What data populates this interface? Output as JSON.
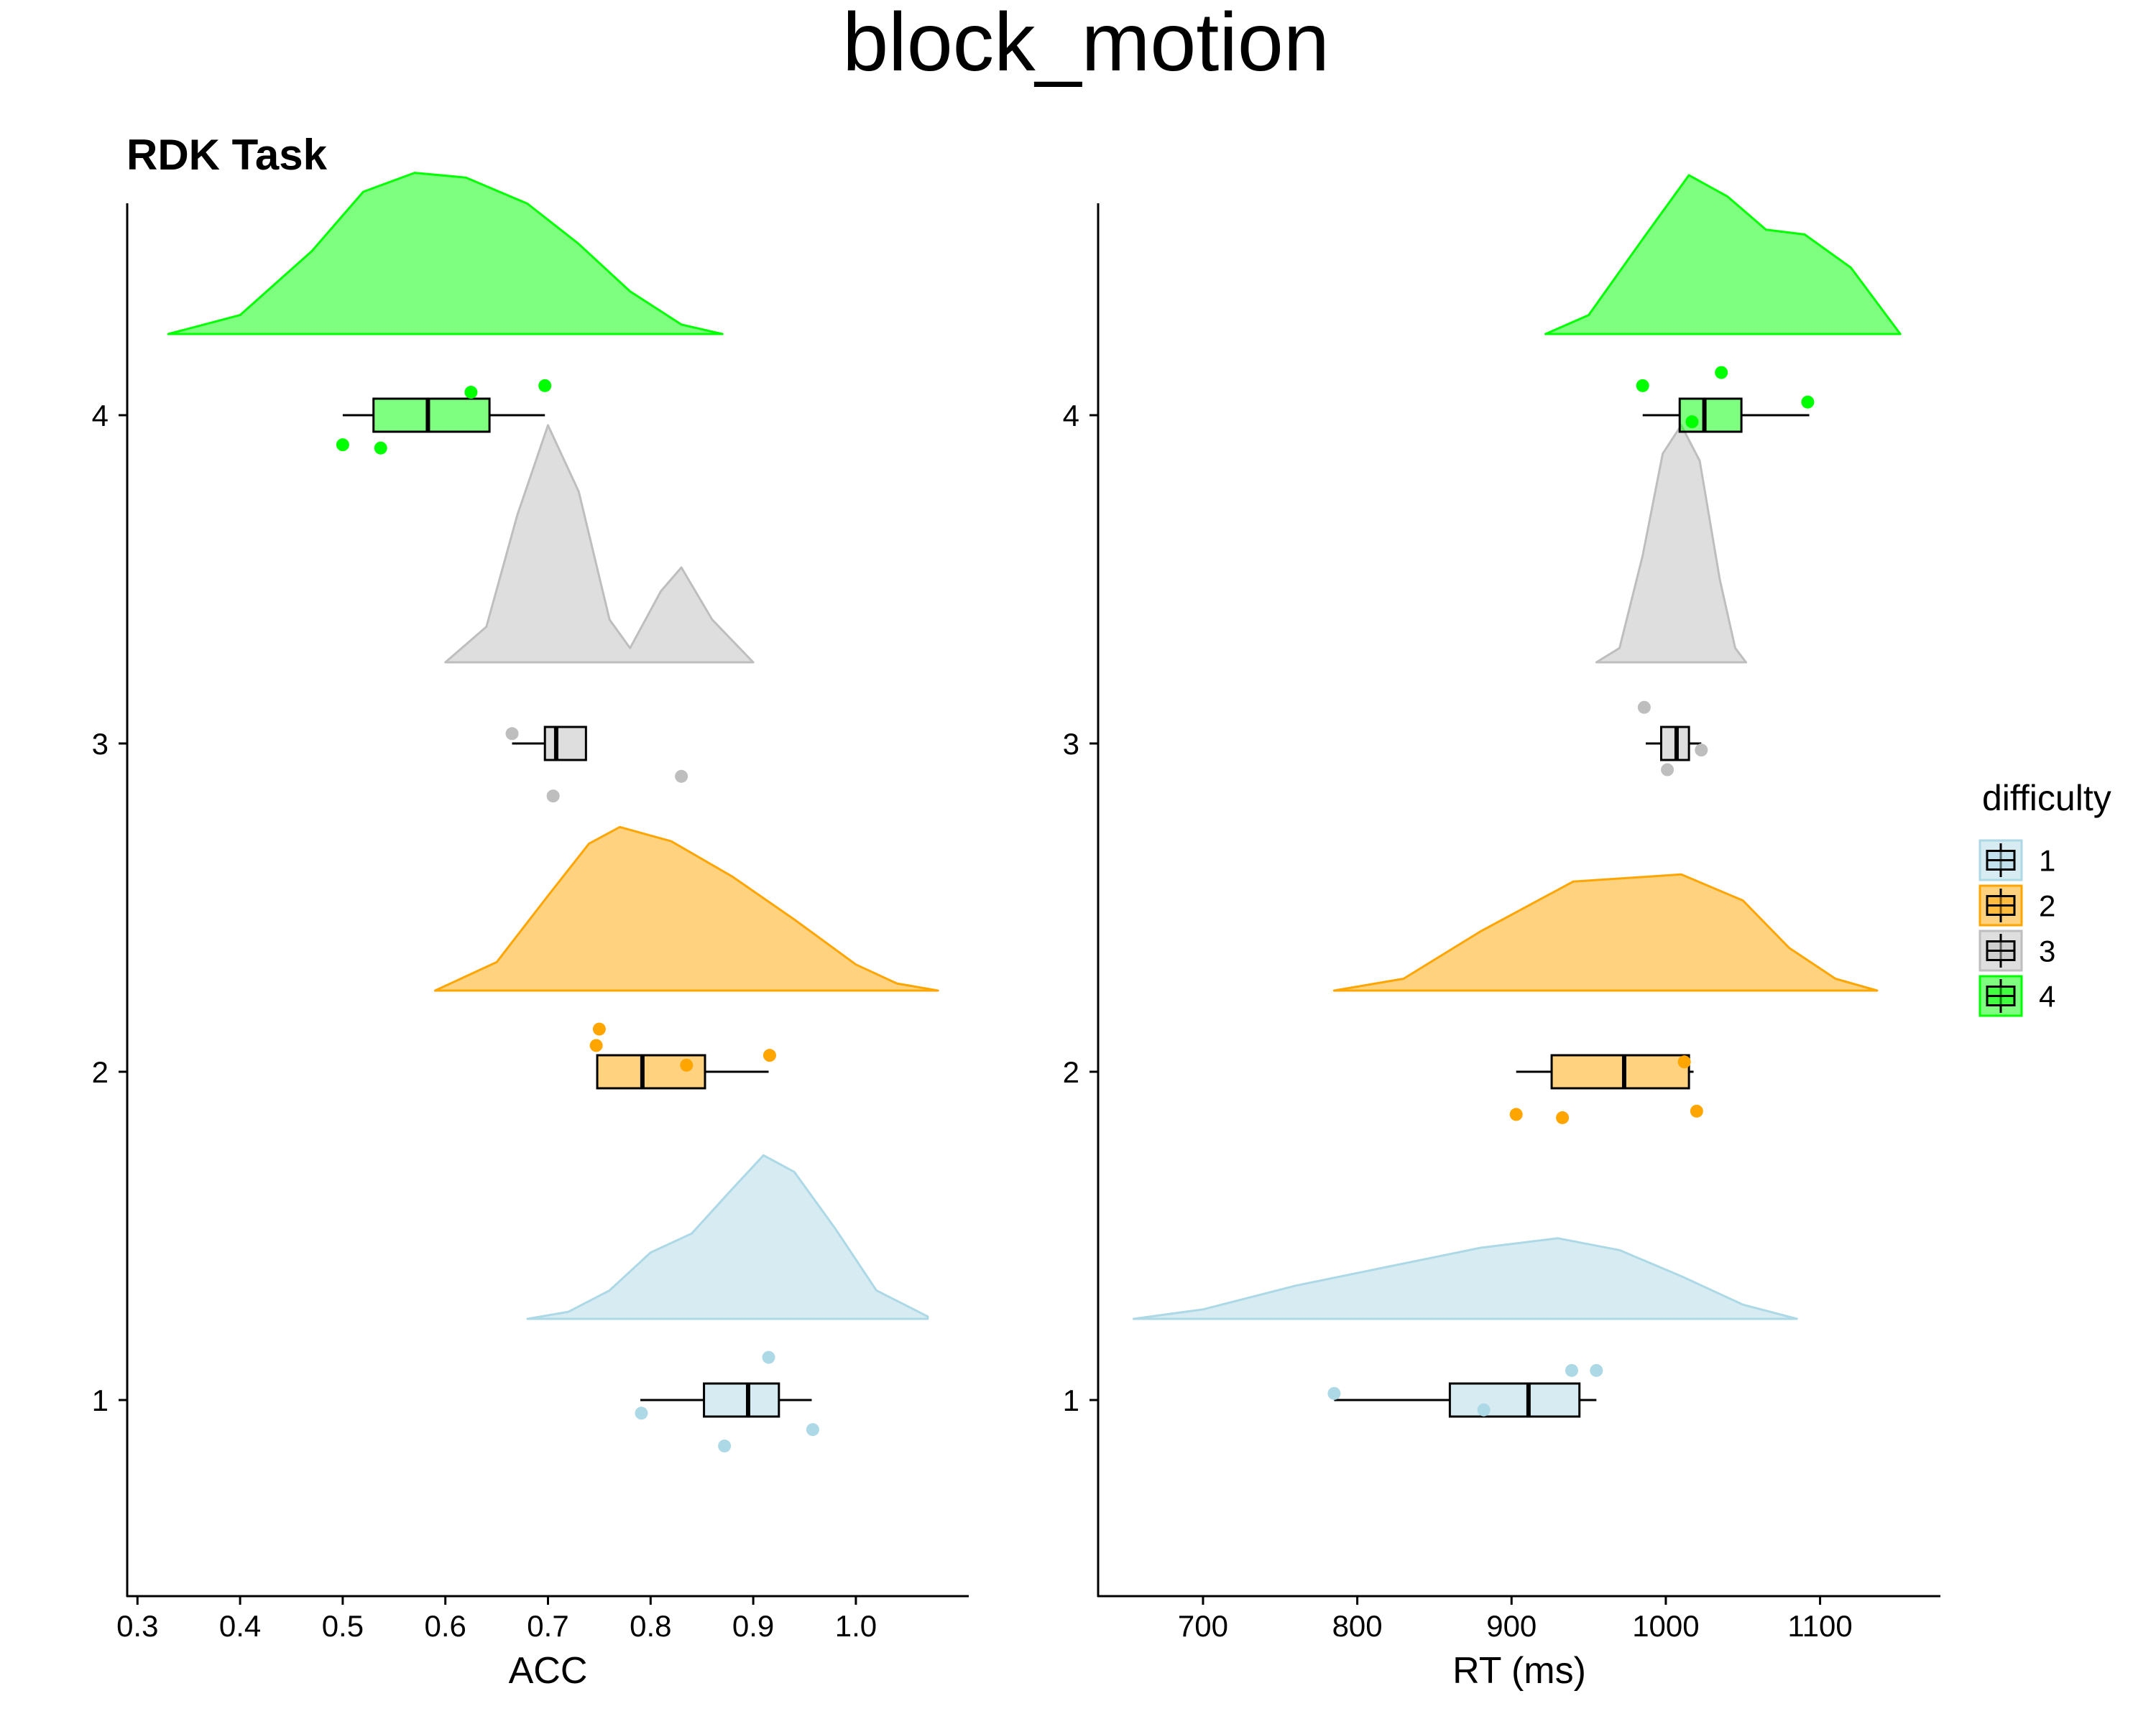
{
  "title": "block_motion",
  "subtitle": "RDK Task",
  "legend": {
    "title": "difficulty",
    "position": "right",
    "items": [
      {
        "label": "1",
        "color": "#ADD8E6"
      },
      {
        "label": "2",
        "color": "#FFA500"
      },
      {
        "label": "3",
        "color": "#BEBEBE"
      },
      {
        "label": "4",
        "color": "#00FF00"
      }
    ]
  },
  "chart_data": [
    {
      "type": "raincloud",
      "xlabel": "ACC",
      "xlim": [
        0.29,
        1.11
      ],
      "xticks": [
        "0.3",
        "0.4",
        "0.5",
        "0.6",
        "0.7",
        "0.8",
        "0.9",
        "1.0"
      ],
      "y_categories": [
        "1",
        "2",
        "3",
        "4"
      ],
      "grid": false,
      "series": [
        {
          "name": "1",
          "color": "#ADD8E6",
          "box": {
            "whisker_low": 0.79,
            "q1": 0.852,
            "median": 0.895,
            "q3": 0.925,
            "whisker_high": 0.957
          },
          "points": [
            [
              0.791,
              0.96
            ],
            [
              0.872,
              0.86
            ],
            [
              0.915,
              1.13
            ],
            [
              0.958,
              0.91
            ]
          ],
          "density_range": [
            0.68,
            1.07
          ],
          "density": [
            [
              0.68,
              0.0
            ],
            [
              0.72,
              0.03
            ],
            [
              0.76,
              0.12
            ],
            [
              0.8,
              0.28
            ],
            [
              0.84,
              0.36
            ],
            [
              0.88,
              0.55
            ],
            [
              0.91,
              0.69
            ],
            [
              0.94,
              0.62
            ],
            [
              0.98,
              0.38
            ],
            [
              1.02,
              0.12
            ],
            [
              1.07,
              0.01
            ]
          ]
        },
        {
          "name": "2",
          "color": "#FFA500",
          "box": {
            "whisker_low": 0.748,
            "q1": 0.748,
            "median": 0.792,
            "q3": 0.853,
            "whisker_high": 0.915
          },
          "points": [
            [
              0.75,
              2.13
            ],
            [
              0.747,
              2.08
            ],
            [
              0.835,
              2.02
            ],
            [
              0.916,
              2.05
            ]
          ],
          "density_range": [
            0.59,
            1.08
          ],
          "density": [
            [
              0.59,
              0.0
            ],
            [
              0.65,
              0.12
            ],
            [
              0.7,
              0.4
            ],
            [
              0.74,
              0.62
            ],
            [
              0.77,
              0.69
            ],
            [
              0.82,
              0.63
            ],
            [
              0.88,
              0.48
            ],
            [
              0.94,
              0.3
            ],
            [
              1.0,
              0.11
            ],
            [
              1.04,
              0.03
            ],
            [
              1.08,
              0.0
            ]
          ]
        },
        {
          "name": "3",
          "color": "#BEBEBE",
          "box": {
            "whisker_low": 0.665,
            "q1": 0.697,
            "median": 0.708,
            "q3": 0.737,
            "whisker_high": 0.737
          },
          "points": [
            [
              0.665,
              3.03
            ],
            [
              0.705,
              2.84
            ],
            [
              0.83,
              2.9
            ]
          ],
          "density_range": [
            0.6,
            0.9
          ],
          "density": [
            [
              0.6,
              0.0
            ],
            [
              0.64,
              0.15
            ],
            [
              0.67,
              0.62
            ],
            [
              0.7,
              1.0
            ],
            [
              0.73,
              0.72
            ],
            [
              0.76,
              0.18
            ],
            [
              0.78,
              0.06
            ],
            [
              0.81,
              0.3
            ],
            [
              0.83,
              0.4
            ],
            [
              0.86,
              0.18
            ],
            [
              0.9,
              0.0
            ]
          ]
        },
        {
          "name": "4",
          "color": "#00FF00",
          "box": {
            "whisker_low": 0.5,
            "q1": 0.53,
            "median": 0.583,
            "q3": 0.643,
            "whisker_high": 0.697
          },
          "points": [
            [
              0.5,
              3.91
            ],
            [
              0.537,
              3.9
            ],
            [
              0.625,
              4.07
            ],
            [
              0.697,
              4.09
            ]
          ],
          "density_range": [
            0.33,
            0.87
          ],
          "density": [
            [
              0.33,
              0.0
            ],
            [
              0.4,
              0.08
            ],
            [
              0.47,
              0.35
            ],
            [
              0.52,
              0.6
            ],
            [
              0.57,
              0.68
            ],
            [
              0.62,
              0.66
            ],
            [
              0.68,
              0.55
            ],
            [
              0.73,
              0.38
            ],
            [
              0.78,
              0.18
            ],
            [
              0.83,
              0.04
            ],
            [
              0.87,
              0.0
            ]
          ]
        }
      ]
    },
    {
      "type": "raincloud",
      "xlabel": "RT (ms)",
      "xlim": [
        632,
        1178
      ],
      "xticks": [
        "700",
        "800",
        "900",
        "1000",
        "1100"
      ],
      "y_categories": [
        "1",
        "2",
        "3",
        "4"
      ],
      "grid": false,
      "series": [
        {
          "name": "1",
          "color": "#ADD8E6",
          "box": {
            "whisker_low": 785,
            "q1": 860,
            "median": 911,
            "q3": 944,
            "whisker_high": 955
          },
          "points": [
            [
              785,
              1.02
            ],
            [
              882,
              0.97
            ],
            [
              939,
              1.09
            ],
            [
              955,
              1.09
            ]
          ],
          "density_range": [
            655,
            1085
          ],
          "density": [
            [
              655,
              0.0
            ],
            [
              700,
              0.04
            ],
            [
              760,
              0.14
            ],
            [
              820,
              0.22
            ],
            [
              880,
              0.3
            ],
            [
              930,
              0.34
            ],
            [
              970,
              0.29
            ],
            [
              1010,
              0.18
            ],
            [
              1050,
              0.06
            ],
            [
              1085,
              0.0
            ]
          ]
        },
        {
          "name": "2",
          "color": "#FFA500",
          "box": {
            "whisker_low": 903,
            "q1": 926,
            "median": 973,
            "q3": 1015,
            "whisker_high": 1018
          },
          "points": [
            [
              903,
              1.87
            ],
            [
              933,
              1.86
            ],
            [
              1012,
              2.03
            ],
            [
              1020,
              1.88
            ]
          ],
          "density_range": [
            785,
            1137
          ],
          "density": [
            [
              785,
              0.0
            ],
            [
              830,
              0.05
            ],
            [
              880,
              0.25
            ],
            [
              940,
              0.46
            ],
            [
              1010,
              0.49
            ],
            [
              1050,
              0.38
            ],
            [
              1080,
              0.18
            ],
            [
              1110,
              0.05
            ],
            [
              1137,
              0.0
            ]
          ]
        },
        {
          "name": "3",
          "color": "#BEBEBE",
          "box": {
            "whisker_low": 987,
            "q1": 997,
            "median": 1007,
            "q3": 1015,
            "whisker_high": 1023
          },
          "points": [
            [
              986,
              3.11
            ],
            [
              1001,
              2.92
            ],
            [
              1023,
              2.98
            ]
          ],
          "density_range": [
            955,
            1052
          ],
          "density": [
            [
              955,
              0.0
            ],
            [
              970,
              0.06
            ],
            [
              985,
              0.45
            ],
            [
              998,
              0.88
            ],
            [
              1010,
              1.0
            ],
            [
              1022,
              0.85
            ],
            [
              1035,
              0.35
            ],
            [
              1045,
              0.06
            ],
            [
              1052,
              0.0
            ]
          ]
        },
        {
          "name": "4",
          "color": "#00FF00",
          "box": {
            "whisker_low": 985,
            "q1": 1009,
            "median": 1025,
            "q3": 1049,
            "whisker_high": 1093
          },
          "points": [
            [
              985,
              4.09
            ],
            [
              1017,
              3.98
            ],
            [
              1036,
              4.13
            ],
            [
              1092,
              4.04
            ]
          ],
          "density_range": [
            922,
            1152
          ],
          "density": [
            [
              922,
              0.0
            ],
            [
              950,
              0.08
            ],
            [
              985,
              0.4
            ],
            [
              1015,
              0.67
            ],
            [
              1040,
              0.58
            ],
            [
              1065,
              0.44
            ],
            [
              1090,
              0.42
            ],
            [
              1120,
              0.28
            ],
            [
              1152,
              0.0
            ]
          ]
        }
      ]
    }
  ]
}
